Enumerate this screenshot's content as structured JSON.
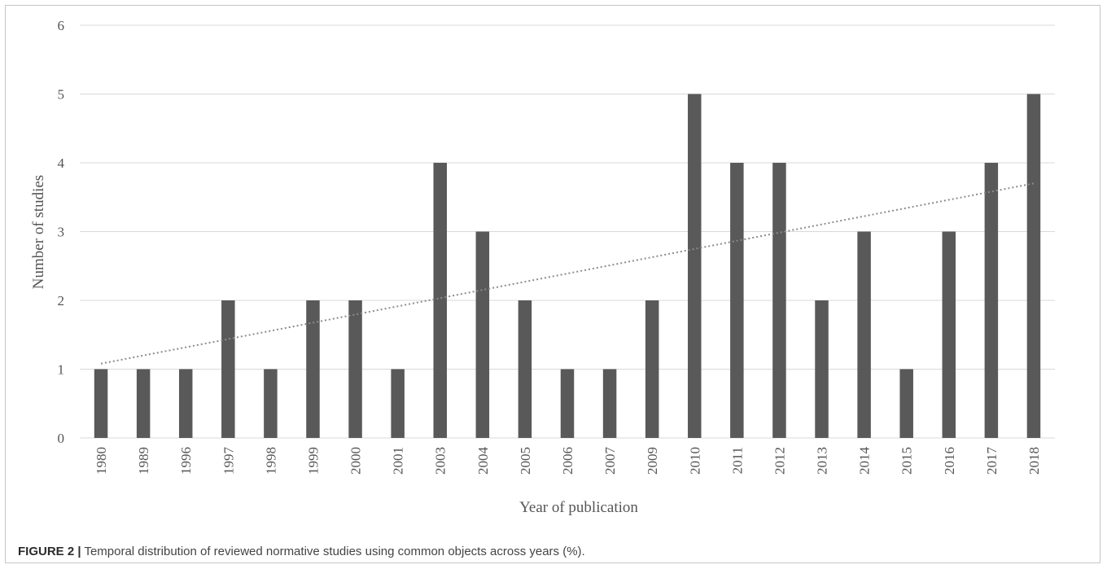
{
  "chart_data": {
    "type": "bar",
    "categories": [
      "1980",
      "1989",
      "1996",
      "1997",
      "1998",
      "1999",
      "2000",
      "2001",
      "2003",
      "2004",
      "2005",
      "2006",
      "2007",
      "2009",
      "2010",
      "2011",
      "2012",
      "2013",
      "2014",
      "2015",
      "2016",
      "2017",
      "2018"
    ],
    "values": [
      1,
      1,
      1,
      2,
      1,
      2,
      2,
      1,
      4,
      3,
      2,
      1,
      1,
      2,
      5,
      4,
      4,
      2,
      3,
      1,
      3,
      4,
      5
    ],
    "xlabel": "Year of publication",
    "ylabel": "Number of studies",
    "ylim": [
      0,
      6
    ],
    "yticks": [
      0,
      1,
      2,
      3,
      4,
      5,
      6
    ],
    "grid": true,
    "trendline": {
      "type": "linear",
      "style": "dotted",
      "start": 1.08,
      "end": 3.7
    },
    "colors": {
      "bar": "#595959",
      "grid": "#d9d9d9",
      "trendline": "#8c8c8c"
    }
  },
  "caption": {
    "label": "FIGURE 2 |",
    "text": " Temporal distribution of reviewed normative studies using common objects across years (%)."
  }
}
